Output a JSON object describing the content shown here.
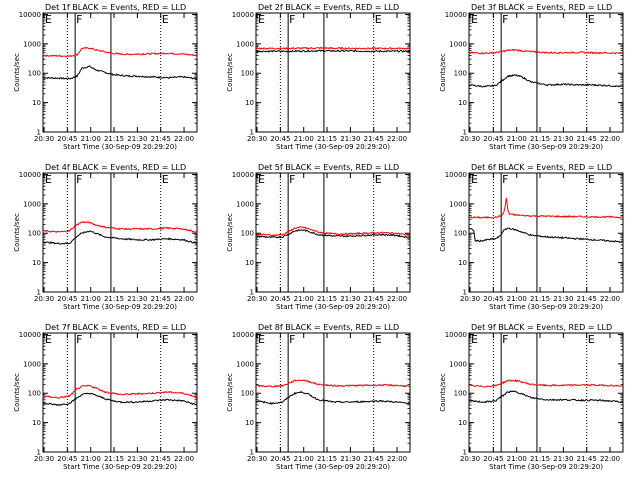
{
  "figure": {
    "xlabel": "Start Time (30-Sep-09 20:29:20)",
    "ylabel": "Counts/sec",
    "x_ticks": [
      "20:30",
      "20:45",
      "21:00",
      "21:15",
      "21:30",
      "21:45",
      "22:00"
    ],
    "y_ticks": [
      "1",
      "10",
      "100",
      "1000",
      "10000"
    ],
    "x_range_minutes": [
      0,
      99
    ],
    "y_range_log10": [
      0,
      4.05
    ],
    "colors": {
      "events": "#000000",
      "lld": "#ff0000",
      "axes": "#000000"
    }
  },
  "chart_data": [
    {
      "type": "line",
      "title": "Det 1f BLACK = Events, RED = LLD",
      "xlabel": "Start Time (30-Sep-09 20:29:20)",
      "ylabel": "Counts/sec",
      "yscale": "log",
      "ylim": [
        1,
        10000
      ],
      "interval_markers": [
        {
          "label": "E",
          "time": "20:30"
        },
        {
          "label": "F",
          "time": "20:50"
        },
        {
          "label": "E",
          "time": "21:45"
        }
      ],
      "solid_lines": [
        "20:50",
        "21:13"
      ],
      "dotted_lines": [
        "20:45",
        "21:45"
      ],
      "series": [
        {
          "name": "Events",
          "color": "#000000",
          "t": [
            0,
            10,
            17,
            22,
            25,
            30,
            34,
            45,
            55,
            60,
            70,
            80,
            90,
            99
          ],
          "v": [
            70,
            68,
            65,
            80,
            150,
            170,
            130,
            90,
            80,
            80,
            75,
            70,
            75,
            65
          ]
        },
        {
          "name": "LLD",
          "color": "#ff0000",
          "t": [
            0,
            10,
            17,
            22,
            25,
            30,
            34,
            45,
            55,
            60,
            70,
            80,
            90,
            99
          ],
          "v": [
            400,
            390,
            380,
            430,
            700,
            720,
            620,
            470,
            440,
            450,
            460,
            480,
            450,
            400
          ]
        }
      ]
    },
    {
      "type": "line",
      "title": "Det 2f BLACK = Events, RED = LLD",
      "xlabel": "Start Time (30-Sep-09 20:29:20)",
      "ylabel": "Counts/sec",
      "yscale": "log",
      "ylim": [
        1,
        10000
      ],
      "interval_markers": [
        {
          "label": "E",
          "time": "20:30"
        },
        {
          "label": "F",
          "time": "20:50"
        },
        {
          "label": "E",
          "time": "21:45"
        }
      ],
      "solid_lines": [
        "20:50",
        "21:13"
      ],
      "dotted_lines": [
        "20:45",
        "21:45"
      ],
      "series": [
        {
          "name": "Events",
          "color": "#000000",
          "t": [
            0,
            20,
            40,
            60,
            80,
            99
          ],
          "v": [
            560,
            560,
            580,
            570,
            560,
            560
          ]
        },
        {
          "name": "LLD",
          "color": "#ff0000",
          "t": [
            0,
            20,
            40,
            60,
            80,
            99
          ],
          "v": [
            700,
            700,
            720,
            700,
            700,
            700
          ]
        }
      ]
    },
    {
      "type": "line",
      "title": "Det 3f BLACK = Events, RED = LLD",
      "xlabel": "Start Time (30-Sep-09 20:29:20)",
      "ylabel": "Counts/sec",
      "yscale": "log",
      "ylim": [
        1,
        10000
      ],
      "interval_markers": [
        {
          "label": "E",
          "time": "20:30"
        },
        {
          "label": "F",
          "time": "20:50"
        },
        {
          "label": "E",
          "time": "21:45"
        }
      ],
      "solid_lines": [
        "20:50",
        "21:13"
      ],
      "dotted_lines": [
        "20:45",
        "21:45"
      ],
      "series": [
        {
          "name": "Events",
          "color": "#000000",
          "t": [
            0,
            10,
            17,
            22,
            25,
            30,
            34,
            40,
            45,
            50,
            60,
            70,
            80,
            90,
            99
          ],
          "v": [
            40,
            35,
            38,
            60,
            80,
            85,
            75,
            50,
            45,
            40,
            42,
            40,
            40,
            38,
            35
          ]
        },
        {
          "name": "LLD",
          "color": "#ff0000",
          "t": [
            0,
            10,
            17,
            22,
            25,
            30,
            34,
            40,
            45,
            50,
            60,
            70,
            80,
            90,
            99
          ],
          "v": [
            500,
            480,
            500,
            560,
            600,
            620,
            580,
            540,
            520,
            500,
            500,
            510,
            500,
            490,
            480
          ]
        }
      ]
    },
    {
      "type": "line",
      "title": "Det 4f BLACK = Events, RED = LLD",
      "xlabel": "Start Time (30-Sep-09 20:29:20)",
      "ylabel": "Counts/sec",
      "yscale": "log",
      "ylim": [
        1,
        10000
      ],
      "interval_markers": [
        {
          "label": "E",
          "time": "20:30"
        },
        {
          "label": "F",
          "time": "20:50"
        },
        {
          "label": "E",
          "time": "21:45"
        }
      ],
      "solid_lines": [
        "20:50",
        "21:13"
      ],
      "dotted_lines": [
        "20:45",
        "21:45"
      ],
      "series": [
        {
          "name": "Events",
          "color": "#000000",
          "t": [
            0,
            10,
            17,
            22,
            25,
            30,
            34,
            40,
            45,
            50,
            60,
            70,
            80,
            90,
            99
          ],
          "v": [
            50,
            45,
            45,
            80,
            100,
            120,
            100,
            75,
            70,
            65,
            60,
            60,
            65,
            60,
            45
          ]
        },
        {
          "name": "LLD",
          "color": "#ff0000",
          "t": [
            0,
            10,
            17,
            22,
            25,
            30,
            34,
            40,
            45,
            50,
            60,
            70,
            80,
            90,
            99
          ],
          "v": [
            120,
            110,
            120,
            200,
            240,
            230,
            190,
            160,
            150,
            140,
            140,
            140,
            150,
            140,
            110
          ]
        }
      ]
    },
    {
      "type": "line",
      "title": "Det 5f BLACK = Events, RED = LLD",
      "xlabel": "Start Time (30-Sep-09 20:29:20)",
      "ylabel": "Counts/sec",
      "yscale": "log",
      "ylim": [
        1,
        10000
      ],
      "interval_markers": [
        {
          "label": "E",
          "time": "20:30"
        },
        {
          "label": "F",
          "time": "20:50"
        },
        {
          "label": "E",
          "time": "21:45"
        }
      ],
      "solid_lines": [
        "20:50",
        "21:13"
      ],
      "dotted_lines": [
        "20:45",
        "21:45"
      ],
      "series": [
        {
          "name": "Events",
          "color": "#000000",
          "t": [
            0,
            10,
            17,
            22,
            25,
            30,
            34,
            40,
            45,
            50,
            60,
            70,
            80,
            90,
            99
          ],
          "v": [
            80,
            72,
            75,
            100,
            120,
            130,
            115,
            90,
            85,
            80,
            80,
            85,
            90,
            85,
            70
          ]
        },
        {
          "name": "LLD",
          "color": "#ff0000",
          "t": [
            0,
            10,
            17,
            22,
            25,
            30,
            34,
            40,
            45,
            50,
            60,
            70,
            80,
            90,
            99
          ],
          "v": [
            95,
            85,
            90,
            120,
            150,
            160,
            140,
            110,
            100,
            95,
            95,
            100,
            105,
            100,
            85
          ]
        }
      ]
    },
    {
      "type": "line",
      "title": "Det 6f BLACK = Events, RED = LLD",
      "xlabel": "Start Time (30-Sep-09 20:29:20)",
      "ylabel": "Counts/sec",
      "yscale": "log",
      "ylim": [
        1,
        10000
      ],
      "interval_markers": [
        {
          "label": "E",
          "time": "20:30"
        },
        {
          "label": "F",
          "time": "20:50"
        },
        {
          "label": "E",
          "time": "21:45"
        }
      ],
      "solid_lines": [
        "20:50",
        "21:13"
      ],
      "dotted_lines": [
        "20:45",
        "21:45"
      ],
      "series": [
        {
          "name": "Events",
          "color": "#000000",
          "t": [
            0,
            3,
            4,
            8,
            12,
            17,
            20,
            22,
            25,
            30,
            34,
            40,
            50,
            60,
            70,
            80,
            90,
            99
          ],
          "v": [
            140,
            130,
            55,
            55,
            60,
            65,
            80,
            120,
            150,
            130,
            110,
            85,
            75,
            70,
            65,
            60,
            55,
            50
          ]
        },
        {
          "name": "LLD",
          "color": "#ff0000",
          "t": [
            0,
            10,
            17,
            20,
            22,
            23,
            24,
            25,
            26,
            28,
            30,
            34,
            40,
            50,
            60,
            70,
            80,
            90,
            99
          ],
          "v": [
            350,
            340,
            350,
            380,
            450,
            700,
            1600,
            600,
            450,
            430,
            420,
            400,
            390,
            380,
            370,
            370,
            360,
            360,
            350
          ]
        }
      ]
    },
    {
      "type": "line",
      "title": "Det 7f BLACK = Events, RED = LLD",
      "xlabel": "Start Time (30-Sep-09 20:29:20)",
      "ylabel": "Counts/sec",
      "yscale": "log",
      "ylim": [
        1,
        10000
      ],
      "interval_markers": [
        {
          "label": "E",
          "time": "20:30"
        },
        {
          "label": "F",
          "time": "20:50"
        },
        {
          "label": "E",
          "time": "21:45"
        }
      ],
      "solid_lines": [
        "20:50",
        "21:13"
      ],
      "dotted_lines": [
        "20:45",
        "21:45"
      ],
      "series": [
        {
          "name": "Events",
          "color": "#000000",
          "t": [
            0,
            10,
            17,
            22,
            25,
            30,
            34,
            40,
            45,
            50,
            60,
            70,
            80,
            90,
            99
          ],
          "v": [
            45,
            40,
            45,
            70,
            90,
            100,
            85,
            65,
            55,
            50,
            50,
            55,
            60,
            55,
            40
          ]
        },
        {
          "name": "LLD",
          "color": "#ff0000",
          "t": [
            0,
            10,
            17,
            22,
            25,
            30,
            34,
            40,
            45,
            50,
            60,
            70,
            80,
            90,
            99
          ],
          "v": [
            80,
            70,
            80,
            140,
            170,
            180,
            150,
            110,
            100,
            90,
            95,
            100,
            110,
            100,
            75
          ]
        }
      ]
    },
    {
      "type": "line",
      "title": "Det 8f BLACK = Events, RED = LLD",
      "xlabel": "Start Time (30-Sep-09 20:29:20)",
      "ylabel": "Counts/sec",
      "yscale": "log",
      "ylim": [
        1,
        10000
      ],
      "interval_markers": [
        {
          "label": "E",
          "time": "20:30"
        },
        {
          "label": "F",
          "time": "20:50"
        },
        {
          "label": "E",
          "time": "21:45"
        }
      ],
      "solid_lines": [
        "20:50",
        "21:13"
      ],
      "dotted_lines": [
        "20:45",
        "21:45"
      ],
      "series": [
        {
          "name": "Events",
          "color": "#000000",
          "t": [
            0,
            10,
            17,
            22,
            25,
            30,
            34,
            40,
            45,
            50,
            60,
            70,
            80,
            90,
            99
          ],
          "v": [
            55,
            45,
            50,
            80,
            100,
            110,
            90,
            60,
            55,
            50,
            50,
            52,
            55,
            50,
            45
          ]
        },
        {
          "name": "LLD",
          "color": "#ff0000",
          "t": [
            0,
            10,
            17,
            22,
            25,
            30,
            34,
            40,
            45,
            50,
            60,
            70,
            80,
            90,
            99
          ],
          "v": [
            180,
            170,
            180,
            230,
            270,
            280,
            250,
            200,
            190,
            180,
            180,
            185,
            190,
            185,
            170
          ]
        }
      ]
    },
    {
      "type": "line",
      "title": "Det 9f BLACK = Events, RED = LLD",
      "xlabel": "Start Time (30-Sep-09 20:29:20)",
      "ylabel": "Counts/sec",
      "yscale": "log",
      "ylim": [
        1,
        10000
      ],
      "interval_markers": [
        {
          "label": "E",
          "time": "20:30"
        },
        {
          "label": "F",
          "time": "20:50"
        },
        {
          "label": "E",
          "time": "21:45"
        }
      ],
      "solid_lines": [
        "20:50",
        "21:13"
      ],
      "dotted_lines": [
        "20:45",
        "21:45"
      ],
      "series": [
        {
          "name": "Events",
          "color": "#000000",
          "t": [
            0,
            10,
            17,
            22,
            25,
            30,
            34,
            40,
            45,
            50,
            60,
            70,
            80,
            90,
            99
          ],
          "v": [
            55,
            50,
            55,
            85,
            110,
            115,
            95,
            70,
            65,
            60,
            60,
            58,
            58,
            55,
            50
          ]
        },
        {
          "name": "LLD",
          "color": "#ff0000",
          "t": [
            0,
            10,
            17,
            22,
            25,
            30,
            34,
            40,
            45,
            50,
            60,
            70,
            80,
            90,
            99
          ],
          "v": [
            180,
            170,
            180,
            230,
            270,
            270,
            240,
            200,
            190,
            185,
            185,
            190,
            190,
            185,
            175
          ]
        }
      ]
    }
  ]
}
